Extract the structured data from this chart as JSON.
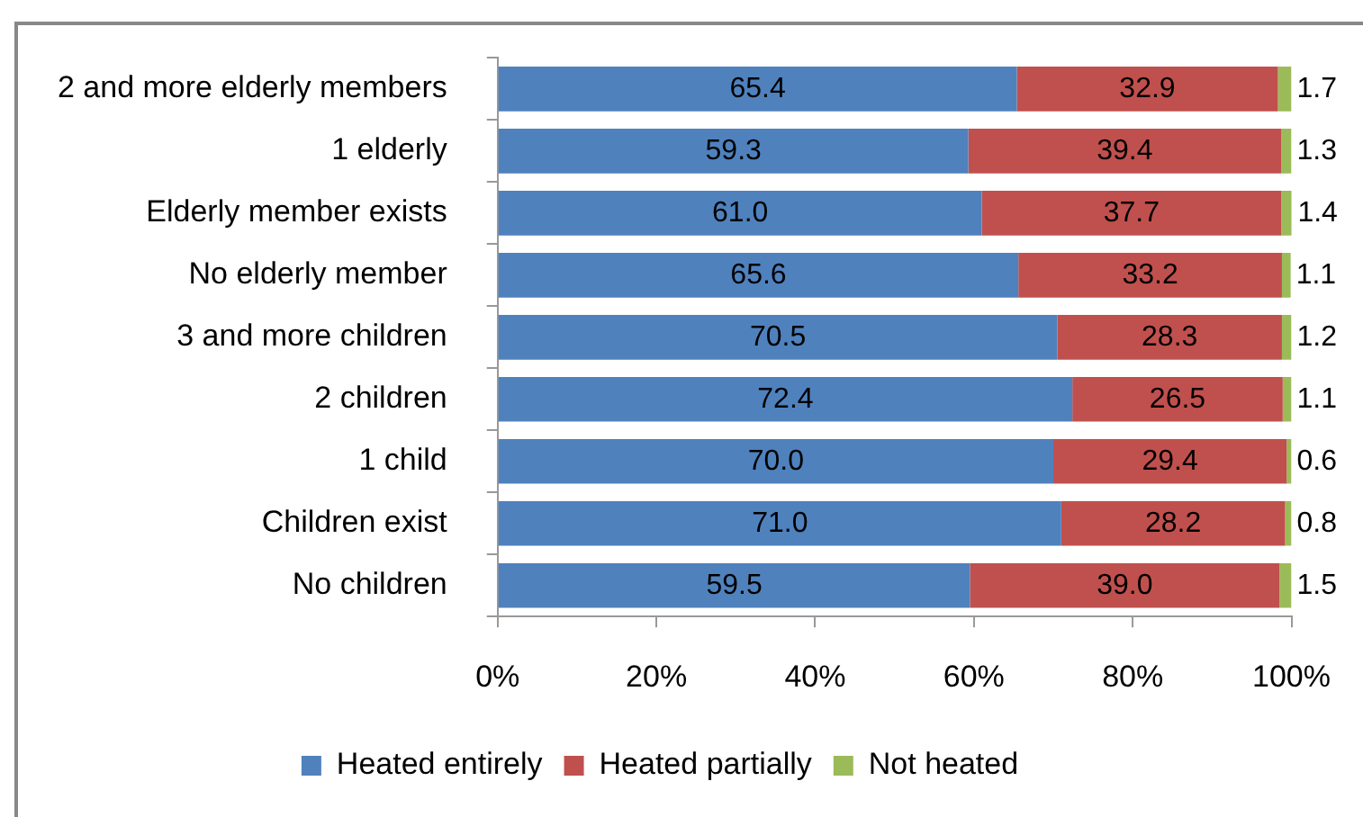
{
  "chart_data": {
    "type": "bar",
    "orientation": "horizontal",
    "stacked": true,
    "categories": [
      "2 and more elderly members",
      "1 elderly",
      "Elderly member exists",
      "No elderly member",
      "3 and more children",
      "2 children",
      "1 child",
      "Children exist",
      "No children"
    ],
    "series": [
      {
        "name": "Heated entirely",
        "color": "#4f81bd",
        "values": [
          65.4,
          59.3,
          61,
          65.6,
          70.5,
          72.4,
          70,
          71,
          59.5
        ],
        "value_labels": [
          "65.4",
          "59.3",
          "61.0",
          "65.6",
          "70.5",
          "72.4",
          "70.0",
          "71.0",
          "59.5"
        ]
      },
      {
        "name": "Heated partially",
        "color": "#c0504d",
        "values": [
          32.9,
          39.4,
          37.7,
          33.2,
          28.3,
          26.5,
          29.4,
          28.2,
          39
        ],
        "value_labels": [
          "32.9",
          "39.4",
          "37.7",
          "33.2",
          "28.3",
          "26.5",
          "29.4",
          "28.2",
          "39.0"
        ]
      },
      {
        "name": "Not heated",
        "color": "#9bbb59",
        "values": [
          1.7,
          1.3,
          1.4,
          1.1,
          1.2,
          1.1,
          0.6,
          0.8,
          1.5
        ],
        "value_labels": [
          "1.7",
          "1.3",
          "1.4",
          "1.1",
          "1.2",
          "1.1",
          "0.6",
          "0.8",
          "1.5"
        ]
      }
    ],
    "xlim": [
      0,
      100
    ],
    "xticks": [
      {
        "value": 0,
        "label": "0%"
      },
      {
        "value": 20,
        "label": "20%"
      },
      {
        "value": 40,
        "label": "40%"
      },
      {
        "value": 60,
        "label": "60%"
      },
      {
        "value": 80,
        "label": "80%"
      },
      {
        "value": 100,
        "label": "100%"
      }
    ],
    "grid": false,
    "legend": "bottom"
  }
}
